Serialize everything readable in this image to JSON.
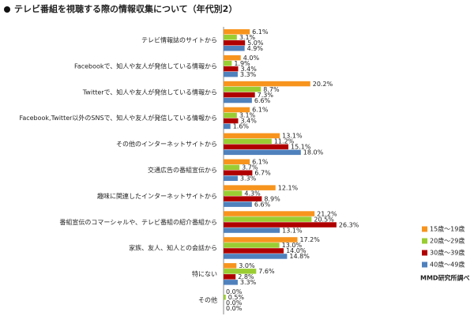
{
  "chart_data": {
    "type": "hbar",
    "title": "テレビ番組を視聴する際の情報収集について（年代別2）",
    "note": "MMD研究所調べ",
    "categories": [
      "テレビ情報誌のサイトから",
      "Facebookで、知人や友人が発信している情報から",
      "Twitterで、知人や友人が発信している情報から",
      "Facebook,Twitter以外のSNSで、知人や友人が発信している情報から",
      "その他のインターネットサイトから",
      "交通広告の番組宣伝から",
      "趣味に関連したインターネットサイトから",
      "番組宣伝のコマーシャルや、テレビ番組の紹介番組から",
      "家族、友人、知人との会話から",
      "特にない",
      "その他"
    ],
    "xlim": [
      0,
      30
    ],
    "legend": "right",
    "series": [
      {
        "name": "15歳～19歳",
        "color": "#f7941d",
        "values": [
          6.1,
          4.0,
          20.2,
          6.1,
          13.1,
          6.1,
          12.1,
          21.2,
          17.2,
          3.0,
          0.0
        ],
        "value_labels": [
          "6.1%",
          "4.0%",
          "20.2%",
          "6.1%",
          "13.1%",
          "6.1%",
          "12.1%",
          "21.2%",
          "17.2%",
          "3.0%",
          "0.0%"
        ]
      },
      {
        "name": "20歳～29歳",
        "color": "#9acd32",
        "values": [
          3.1,
          1.9,
          8.7,
          3.1,
          11.2,
          3.7,
          4.3,
          20.5,
          13.0,
          7.6,
          0.5
        ],
        "value_labels": [
          "3.1%",
          "1.9%",
          "8.7%",
          "3.1%",
          "11.2%",
          "3.7%",
          "4.3%",
          "20.5%",
          "13.0%",
          "7.6%",
          "0.5%"
        ]
      },
      {
        "name": "30歳～39歳",
        "color": "#b00000",
        "values": [
          5.0,
          3.4,
          7.3,
          3.4,
          15.1,
          6.7,
          8.9,
          26.3,
          14.0,
          2.8,
          0.0
        ],
        "value_labels": [
          "5.0%",
          "3.4%",
          "7.3%",
          "3.4%",
          "15.1%",
          "6.7%",
          "8.9%",
          "26.3%",
          "14.0%",
          "2.8%",
          "0.0%"
        ]
      },
      {
        "name": "40歳～49歳",
        "color": "#4f81bd",
        "values": [
          4.9,
          3.3,
          6.6,
          1.6,
          18.0,
          3.3,
          6.6,
          13.1,
          14.8,
          3.3,
          0.0
        ],
        "value_labels": [
          "4.9%",
          "3.3%",
          "6.6%",
          "1.6%",
          "18.0%",
          "3.3%",
          "6.6%",
          "13.1%",
          "14.8%",
          "3.3%",
          "0.0%"
        ]
      }
    ]
  }
}
